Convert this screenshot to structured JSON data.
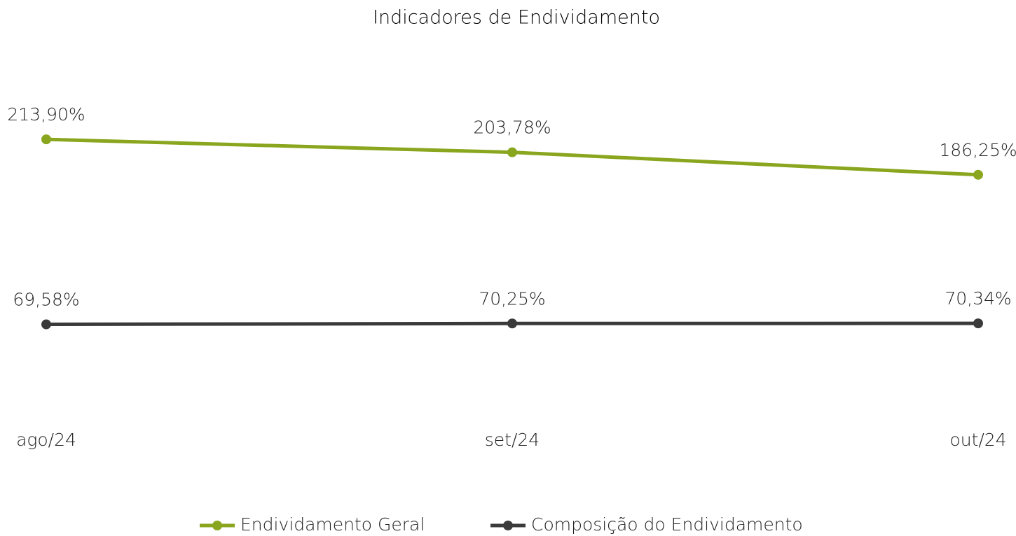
{
  "chart_data": {
    "type": "line",
    "title": "Indicadores de Endividamento",
    "categories": [
      "ago/24",
      "set/24",
      "out/24"
    ],
    "series": [
      {
        "name": "Endividamento Geral",
        "color": "#8aa61e",
        "values": [
          213.9,
          203.78,
          186.25
        ],
        "value_labels": [
          "213,90%",
          "203,78%",
          "186,25%"
        ]
      },
      {
        "name": "Composição do Endividamento",
        "color": "#3a3a3a",
        "values": [
          69.58,
          70.25,
          70.34
        ],
        "value_labels": [
          "69,58%",
          "70,25%",
          "70,34%"
        ]
      }
    ],
    "ylim": [
      0,
      250
    ],
    "legend": "bottom"
  }
}
